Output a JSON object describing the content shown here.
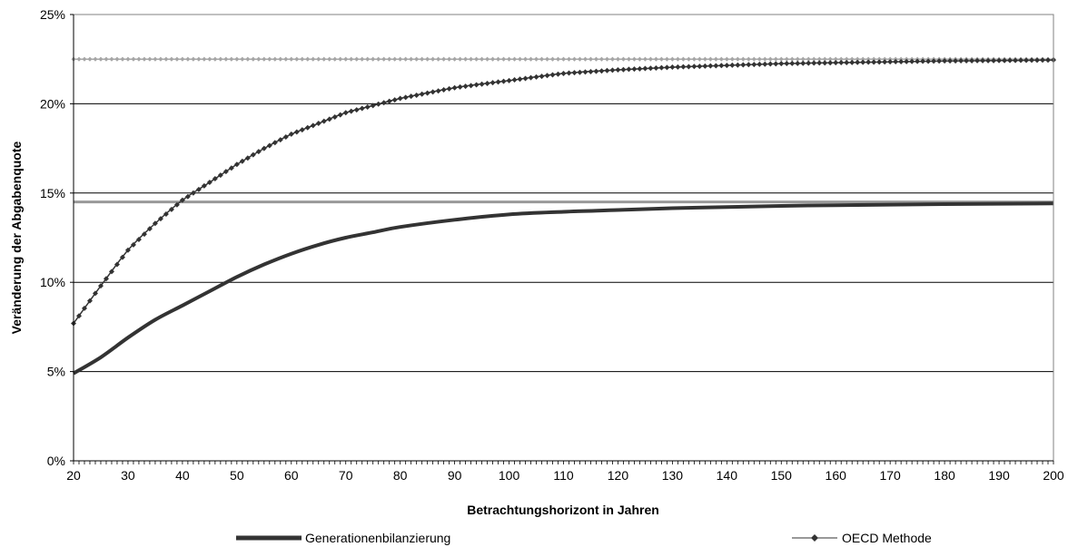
{
  "chart_data": {
    "type": "line",
    "title": "",
    "xlabel": "Betrachtungshorizont in Jahren",
    "ylabel": "Veränderung der Abgabenquote",
    "xlim": [
      20,
      200
    ],
    "ylim": [
      0,
      25
    ],
    "x_ticks": [
      20,
      30,
      40,
      50,
      60,
      70,
      80,
      90,
      100,
      110,
      120,
      130,
      140,
      150,
      160,
      170,
      180,
      190,
      200
    ],
    "x_tick_labels": [
      "20",
      "30",
      "40",
      "50",
      "60",
      "70",
      "80",
      "90",
      "100",
      "110",
      "120",
      "130",
      "140",
      "150",
      "160",
      "170",
      "180",
      "190",
      "200"
    ],
    "y_ticks": [
      0,
      5,
      10,
      15,
      20,
      25
    ],
    "y_tick_labels": [
      "0%",
      "5%",
      "10%",
      "15%",
      "20%",
      "25%"
    ],
    "grid": "horizontal",
    "legend_position": "bottom",
    "series": [
      {
        "name": "Generationenbilanzierung",
        "style": "thick-line",
        "color": "#333333",
        "x": [
          20,
          25,
          30,
          35,
          40,
          45,
          50,
          55,
          60,
          65,
          70,
          75,
          80,
          90,
          100,
          110,
          120,
          130,
          140,
          150,
          160,
          170,
          180,
          190,
          200
        ],
        "y": [
          4.9,
          5.8,
          6.9,
          7.9,
          8.7,
          9.5,
          10.3,
          11.0,
          11.6,
          12.1,
          12.5,
          12.8,
          13.1,
          13.5,
          13.8,
          13.95,
          14.05,
          14.15,
          14.22,
          14.28,
          14.32,
          14.35,
          14.38,
          14.4,
          14.42
        ]
      },
      {
        "name": "OECD Methode",
        "style": "line-diamond",
        "color": "#333333",
        "x": [
          20,
          25,
          30,
          35,
          40,
          45,
          50,
          55,
          60,
          65,
          70,
          75,
          80,
          90,
          100,
          110,
          120,
          130,
          140,
          150,
          160,
          170,
          180,
          190,
          200
        ],
        "y": [
          7.7,
          9.8,
          11.8,
          13.3,
          14.6,
          15.6,
          16.6,
          17.5,
          18.3,
          18.9,
          19.5,
          19.9,
          20.3,
          20.9,
          21.3,
          21.7,
          21.9,
          22.05,
          22.15,
          22.25,
          22.3,
          22.35,
          22.4,
          22.42,
          22.45
        ]
      },
      {
        "name": "",
        "style": "horizontal-reference",
        "color": "#999999",
        "x": [
          20,
          200
        ],
        "y": [
          14.5,
          14.5
        ]
      },
      {
        "name": "",
        "style": "horizontal-reference-diamond",
        "color": "#a6a6a6",
        "x": [
          20,
          200
        ],
        "y": [
          22.5,
          22.5
        ]
      }
    ]
  }
}
